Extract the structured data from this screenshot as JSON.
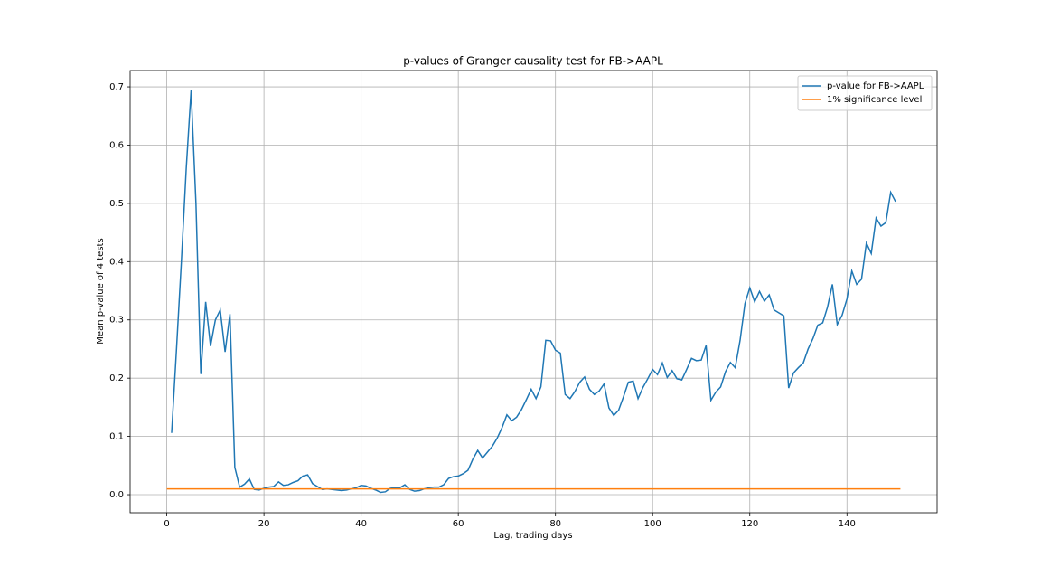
{
  "chart_data": {
    "type": "line",
    "title": "p-values of Granger causality test for FB->AAPL",
    "x_label": "Lag, trading days",
    "y_label": "Mean p-value of 4 tests",
    "xlim": [
      -7.55,
      158.55
    ],
    "ylim": [
      -0.031,
      0.728
    ],
    "xticks": [
      0,
      20,
      40,
      60,
      80,
      100,
      120,
      140
    ],
    "yticks": [
      {
        "value": 0,
        "label": "0.0"
      },
      0.1,
      0.2,
      0.3,
      0.4,
      0.5,
      0.6,
      0.7
    ],
    "grid": true,
    "legend": "upper right",
    "series": [
      {
        "name": "p-value for FB->AAPL",
        "color": "#1f77b4",
        "x": [
          1,
          2,
          3,
          4,
          5,
          6,
          7,
          8,
          9,
          10,
          11,
          12,
          13,
          14,
          15,
          16,
          17,
          18,
          19,
          20,
          21,
          22,
          23,
          24,
          25,
          26,
          27,
          28,
          29,
          30,
          31,
          32,
          33,
          34,
          35,
          36,
          37,
          38,
          39,
          40,
          41,
          42,
          43,
          44,
          45,
          46,
          47,
          48,
          49,
          50,
          51,
          52,
          53,
          54,
          55,
          56,
          57,
          58,
          59,
          60,
          61,
          62,
          63,
          64,
          65,
          66,
          67,
          68,
          69,
          70,
          71,
          72,
          73,
          74,
          75,
          76,
          77,
          78,
          79,
          80,
          81,
          82,
          83,
          84,
          85,
          86,
          87,
          88,
          89,
          90,
          91,
          92,
          93,
          94,
          95,
          96,
          97,
          98,
          99,
          100,
          101,
          102,
          103,
          104,
          105,
          106,
          107,
          108,
          109,
          110,
          111,
          112,
          113,
          114,
          115,
          116,
          117,
          118,
          119,
          120,
          121,
          122,
          123,
          124,
          125,
          126,
          127,
          128,
          129,
          130,
          131,
          132,
          133,
          134,
          135,
          136,
          137,
          138,
          139,
          140,
          141,
          142,
          143,
          144,
          145,
          146,
          147,
          148,
          149,
          150
        ],
        "values": [
          0.106,
          0.25,
          0.4,
          0.56,
          0.694,
          0.5,
          0.207,
          0.331,
          0.255,
          0.3,
          0.317,
          0.245,
          0.31,
          0.047,
          0.013,
          0.018,
          0.027,
          0.009,
          0.008,
          0.011,
          0.013,
          0.014,
          0.022,
          0.016,
          0.017,
          0.021,
          0.024,
          0.032,
          0.034,
          0.019,
          0.014,
          0.009,
          0.01,
          0.009,
          0.008,
          0.007,
          0.008,
          0.01,
          0.012,
          0.016,
          0.015,
          0.011,
          0.008,
          0.004,
          0.005,
          0.011,
          0.012,
          0.012,
          0.017,
          0.009,
          0.006,
          0.007,
          0.01,
          0.012,
          0.013,
          0.013,
          0.017,
          0.028,
          0.031,
          0.032,
          0.036,
          0.042,
          0.061,
          0.076,
          0.063,
          0.073,
          0.083,
          0.097,
          0.115,
          0.137,
          0.127,
          0.133,
          0.146,
          0.163,
          0.181,
          0.165,
          0.185,
          0.265,
          0.264,
          0.248,
          0.243,
          0.172,
          0.165,
          0.177,
          0.193,
          0.202,
          0.181,
          0.172,
          0.178,
          0.19,
          0.149,
          0.136,
          0.145,
          0.168,
          0.193,
          0.195,
          0.165,
          0.184,
          0.199,
          0.215,
          0.206,
          0.226,
          0.201,
          0.213,
          0.199,
          0.197,
          0.215,
          0.234,
          0.23,
          0.231,
          0.256,
          0.162,
          0.176,
          0.185,
          0.211,
          0.227,
          0.218,
          0.265,
          0.328,
          0.355,
          0.331,
          0.349,
          0.332,
          0.343,
          0.317,
          0.312,
          0.307,
          0.183,
          0.209,
          0.218,
          0.226,
          0.25,
          0.268,
          0.291,
          0.295,
          0.322,
          0.361,
          0.292,
          0.308,
          0.336,
          0.384,
          0.361,
          0.37,
          0.432,
          0.414,
          0.475,
          0.461,
          0.467,
          0.519,
          0.503
        ]
      },
      {
        "name": "1% significance level",
        "color": "#ff7f0e",
        "x": [
          0,
          151
        ],
        "values": [
          0.01,
          0.01
        ]
      }
    ]
  }
}
